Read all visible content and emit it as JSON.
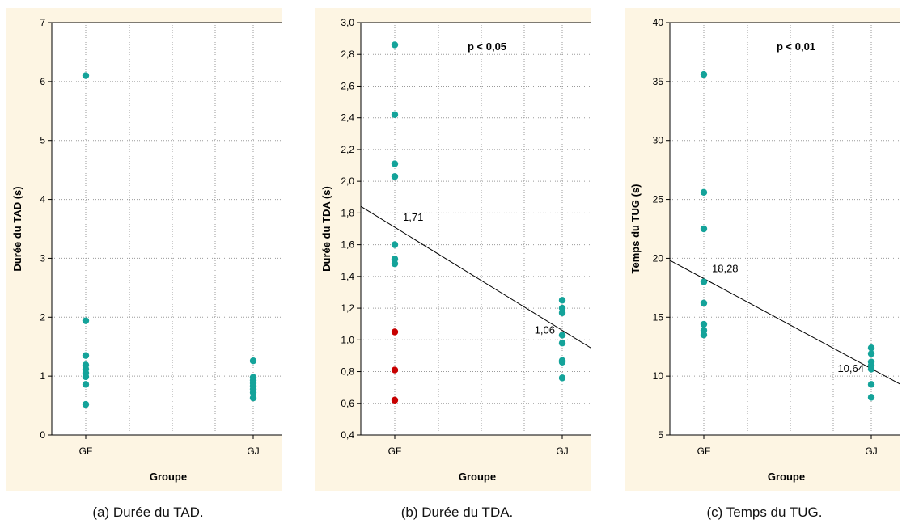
{
  "colors": {
    "teal": "#14a39a",
    "red": "#c80000",
    "panel_bg": "#fdf5e3"
  },
  "captions": [
    "(a)  Durée du TAD.",
    "(b)  Durée du TDA.",
    "(c)  Temps du TUG."
  ],
  "chart_data": [
    {
      "type": "scatter",
      "title": "",
      "xlabel": "Groupe",
      "ylabel": "Durée du TAD (s)",
      "categories": [
        "GF",
        "GJ"
      ],
      "ylim": [
        0,
        7
      ],
      "yticks": [
        0,
        1,
        2,
        3,
        4,
        5,
        6,
        7
      ],
      "ytick_labels": [
        "0",
        "1",
        "2",
        "3",
        "4",
        "5",
        "6",
        "7"
      ],
      "grid": true,
      "annotation": "",
      "points": [
        {
          "x": "GF",
          "y": 6.1,
          "color": "teal"
        },
        {
          "x": "GF",
          "y": 1.94,
          "color": "teal"
        },
        {
          "x": "GF",
          "y": 1.35,
          "color": "teal"
        },
        {
          "x": "GF",
          "y": 1.19,
          "color": "teal"
        },
        {
          "x": "GF",
          "y": 1.12,
          "color": "teal"
        },
        {
          "x": "GF",
          "y": 1.05,
          "color": "teal"
        },
        {
          "x": "GF",
          "y": 0.99,
          "color": "teal"
        },
        {
          "x": "GF",
          "y": 0.86,
          "color": "teal"
        },
        {
          "x": "GF",
          "y": 0.52,
          "color": "teal"
        },
        {
          "x": "GJ",
          "y": 1.26,
          "color": "teal"
        },
        {
          "x": "GJ",
          "y": 0.98,
          "color": "teal"
        },
        {
          "x": "GJ",
          "y": 0.93,
          "color": "teal"
        },
        {
          "x": "GJ",
          "y": 0.88,
          "color": "teal"
        },
        {
          "x": "GJ",
          "y": 0.83,
          "color": "teal"
        },
        {
          "x": "GJ",
          "y": 0.78,
          "color": "teal"
        },
        {
          "x": "GJ",
          "y": 0.72,
          "color": "teal"
        },
        {
          "x": "GJ",
          "y": 0.63,
          "color": "teal"
        }
      ]
    },
    {
      "type": "scatter",
      "title": "",
      "xlabel": "Groupe",
      "ylabel": "Durée du TDA (s)",
      "categories": [
        "GF",
        "GJ"
      ],
      "ylim": [
        0.4,
        3.0
      ],
      "yticks": [
        0.4,
        0.6,
        0.8,
        1.0,
        1.2,
        1.4,
        1.6,
        1.8,
        2.0,
        2.2,
        2.4,
        2.6,
        2.8,
        3.0
      ],
      "ytick_labels": [
        "0,4",
        "0,6",
        "0,8",
        "1,0",
        "1,2",
        "1,4",
        "1,6",
        "1,8",
        "2,0",
        "2,2",
        "2,4",
        "2,6",
        "2,8",
        "3,0"
      ],
      "grid": true,
      "annotation": "p < 0,05",
      "trend_line": {
        "GF": 1.71,
        "GJ": 1.06
      },
      "point_labels": [
        {
          "x": "GF",
          "y": 1.71,
          "text": "1,71"
        },
        {
          "x": "GJ",
          "y": 1.06,
          "text": "1,06"
        }
      ],
      "points": [
        {
          "x": "GF",
          "y": 2.86,
          "color": "teal"
        },
        {
          "x": "GF",
          "y": 2.42,
          "color": "teal"
        },
        {
          "x": "GF",
          "y": 2.11,
          "color": "teal"
        },
        {
          "x": "GF",
          "y": 2.03,
          "color": "teal"
        },
        {
          "x": "GF",
          "y": 1.6,
          "color": "teal"
        },
        {
          "x": "GF",
          "y": 1.51,
          "color": "teal"
        },
        {
          "x": "GF",
          "y": 1.48,
          "color": "teal"
        },
        {
          "x": "GF",
          "y": 1.05,
          "color": "red"
        },
        {
          "x": "GF",
          "y": 0.81,
          "color": "red"
        },
        {
          "x": "GF",
          "y": 0.62,
          "color": "red"
        },
        {
          "x": "GJ",
          "y": 1.25,
          "color": "teal"
        },
        {
          "x": "GJ",
          "y": 1.2,
          "color": "teal"
        },
        {
          "x": "GJ",
          "y": 1.17,
          "color": "teal"
        },
        {
          "x": "GJ",
          "y": 1.03,
          "color": "teal"
        },
        {
          "x": "GJ",
          "y": 0.98,
          "color": "teal"
        },
        {
          "x": "GJ",
          "y": 0.87,
          "color": "teal"
        },
        {
          "x": "GJ",
          "y": 0.86,
          "color": "teal"
        },
        {
          "x": "GJ",
          "y": 0.76,
          "color": "teal"
        }
      ]
    },
    {
      "type": "scatter",
      "title": "",
      "xlabel": "Groupe",
      "ylabel": "Temps du TUG (s)",
      "categories": [
        "GF",
        "GJ"
      ],
      "ylim": [
        5,
        40
      ],
      "yticks": [
        5,
        10,
        15,
        20,
        25,
        30,
        35,
        40
      ],
      "ytick_labels": [
        "5",
        "10",
        "15",
        "20",
        "25",
        "30",
        "35",
        "40"
      ],
      "grid": true,
      "annotation": "p < 0,01",
      "trend_line": {
        "GF": 18.28,
        "GJ": 10.64
      },
      "point_labels": [
        {
          "x": "GF",
          "y": 18.28,
          "text": "18,28"
        },
        {
          "x": "GJ",
          "y": 10.64,
          "text": "10,64"
        }
      ],
      "points": [
        {
          "x": "GF",
          "y": 35.6,
          "color": "teal"
        },
        {
          "x": "GF",
          "y": 25.6,
          "color": "teal"
        },
        {
          "x": "GF",
          "y": 22.5,
          "color": "teal"
        },
        {
          "x": "GF",
          "y": 18.0,
          "color": "teal"
        },
        {
          "x": "GF",
          "y": 16.2,
          "color": "teal"
        },
        {
          "x": "GF",
          "y": 14.4,
          "color": "teal"
        },
        {
          "x": "GF",
          "y": 13.9,
          "color": "teal"
        },
        {
          "x": "GF",
          "y": 13.5,
          "color": "teal"
        },
        {
          "x": "GJ",
          "y": 12.4,
          "color": "teal"
        },
        {
          "x": "GJ",
          "y": 11.9,
          "color": "teal"
        },
        {
          "x": "GJ",
          "y": 11.2,
          "color": "teal"
        },
        {
          "x": "GJ",
          "y": 10.9,
          "color": "teal"
        },
        {
          "x": "GJ",
          "y": 10.6,
          "color": "teal"
        },
        {
          "x": "GJ",
          "y": 9.3,
          "color": "teal"
        },
        {
          "x": "GJ",
          "y": 8.2,
          "color": "teal"
        }
      ]
    }
  ]
}
